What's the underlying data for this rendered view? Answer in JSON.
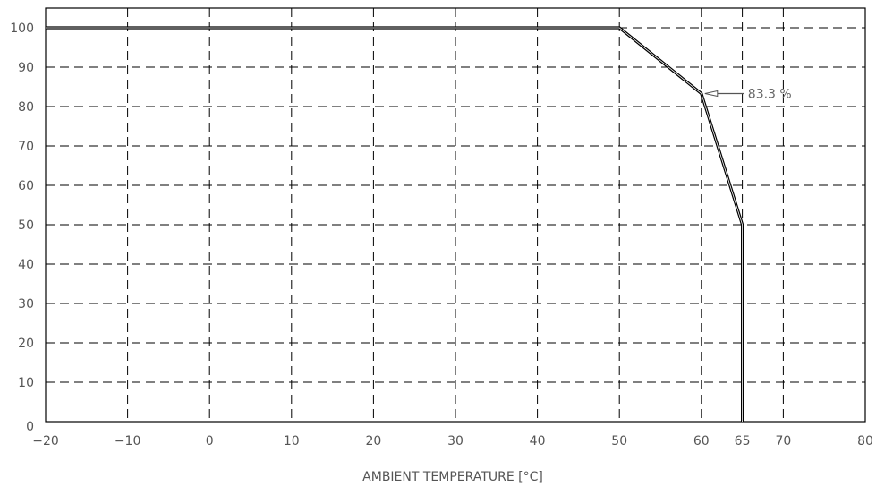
{
  "chart_data": {
    "type": "line",
    "title": "",
    "xlabel": "AMBIENT TEMPERATURE [°C]",
    "ylabel": "",
    "xlim": [
      -20,
      80
    ],
    "ylim": [
      0,
      105
    ],
    "x_ticks": [
      -20,
      -10,
      0,
      10,
      20,
      30,
      40,
      50,
      60,
      65,
      70,
      80
    ],
    "x_tick_labels": [
      "−20",
      "−10",
      "0",
      "10",
      "20",
      "30",
      "40",
      "50",
      "60",
      "65",
      "70",
      "80"
    ],
    "y_ticks": [
      0,
      10,
      20,
      30,
      40,
      50,
      60,
      70,
      80,
      90,
      100
    ],
    "y_tick_labels": [
      "0",
      "10",
      "20",
      "30",
      "40",
      "50",
      "60",
      "70",
      "80",
      "90",
      "100"
    ],
    "grid": true,
    "grid_style": "dashed",
    "series": [
      {
        "x": [
          -20,
          50,
          60,
          65,
          65
        ],
        "y": [
          100,
          100,
          83.3,
          50,
          0
        ],
        "color": "#000000"
      }
    ],
    "annotations": [
      {
        "text": "83.3 %",
        "x": 60,
        "y": 83.3
      }
    ]
  }
}
